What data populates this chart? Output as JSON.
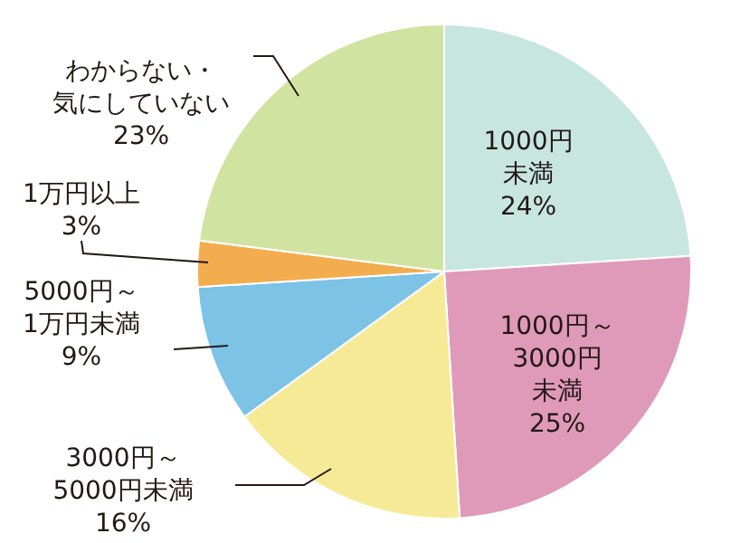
{
  "chart_data": {
    "type": "pie",
    "categories": [
      "1000円未満",
      "1000円～3000円未満",
      "3000円～5000円未満",
      "5000円～1万円未満",
      "1万円以上",
      "わからない・気にしていない"
    ],
    "values": [
      24,
      25,
      16,
      9,
      3,
      23
    ],
    "value_labels": [
      "24%",
      "25%",
      "16%",
      "9%",
      "3%",
      "23%"
    ],
    "colors": [
      "#c8e6e0",
      "#e09ab9",
      "#f6ea96",
      "#7cc3e6",
      "#f3ad4f",
      "#d1e3a0"
    ],
    "legend": false
  }
}
